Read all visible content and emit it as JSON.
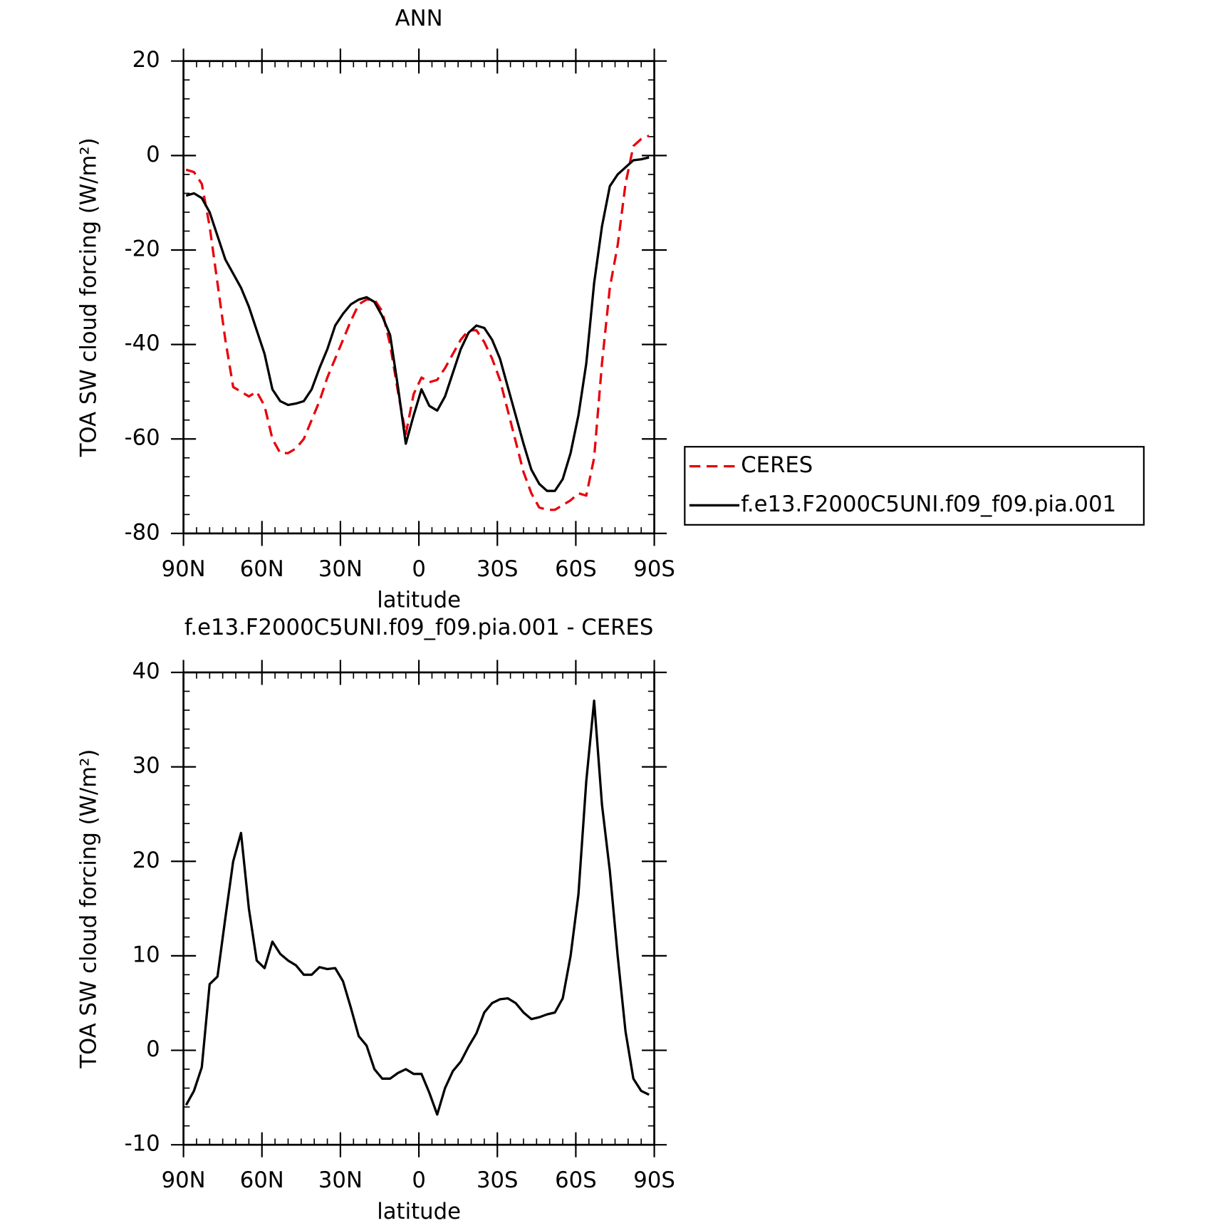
{
  "chart_data": [
    {
      "type": "line",
      "title": "ANN",
      "xlabel": "latitude",
      "ylabel": "TOA SW cloud forcing (W/m²)",
      "x": [
        89,
        86,
        83,
        80,
        77,
        74,
        71,
        68,
        65,
        62,
        59,
        56,
        53,
        50,
        47,
        44,
        41,
        38,
        35,
        32,
        29,
        26,
        23,
        20,
        17,
        14,
        11,
        8,
        5,
        2,
        -1,
        -4,
        -7,
        -10,
        -13,
        -16,
        -19,
        -22,
        -25,
        -28,
        -31,
        -34,
        -37,
        -40,
        -43,
        -46,
        -49,
        -52,
        -55,
        -58,
        -61,
        -64,
        -67,
        -70,
        -73,
        -76,
        -79,
        -82,
        -85,
        -88
      ],
      "series": [
        {
          "name": "CERES",
          "color": "#e8000b",
          "dashed": true,
          "values": [
            -3,
            -3.5,
            -6,
            -15,
            -27,
            -39,
            -49,
            -50,
            -51,
            -50,
            -53,
            -60,
            -63,
            -63,
            -62,
            -60,
            -56,
            -52,
            -47,
            -43,
            -39,
            -35,
            -31.5,
            -30.5,
            -30.5,
            -33,
            -40,
            -50,
            -59,
            -50.5,
            -47,
            -48,
            -47.5,
            -45,
            -42,
            -39,
            -37,
            -37,
            -39.5,
            -43,
            -47.5,
            -54,
            -60.5,
            -67,
            -71.5,
            -74.5,
            -75,
            -75,
            -74,
            -73,
            -71.5,
            -72,
            -64,
            -44,
            -28,
            -19,
            -6,
            2,
            3.5,
            4.2
          ]
        },
        {
          "name": "f.e13.F2000C5UNI.f09_f09.pia.001",
          "color": "#000000",
          "dashed": false,
          "values": [
            -8.5,
            -8,
            -9,
            -12,
            -17,
            -22,
            -25,
            -28,
            -32,
            -37,
            -42,
            -49.5,
            -52,
            -52.8,
            -52.5,
            -52,
            -49.5,
            -45,
            -41,
            -36,
            -33.5,
            -31.5,
            -30.5,
            -30,
            -31,
            -34,
            -38,
            -49,
            -61,
            -55,
            -49.5,
            -53,
            -54,
            -51,
            -46,
            -41,
            -37.5,
            -36,
            -36.5,
            -39,
            -43,
            -49,
            -55,
            -61,
            -66.5,
            -69.5,
            -71,
            -71,
            -68.5,
            -63,
            -55,
            -44,
            -27,
            -15,
            -6.5,
            -4,
            -2.5,
            -1,
            -0.8,
            -0.4
          ]
        }
      ],
      "xlim": [
        90,
        -90
      ],
      "xticks": [
        {
          "value": 90,
          "label": "90N"
        },
        {
          "value": 60,
          "label": "60N"
        },
        {
          "value": 30,
          "label": "30N"
        },
        0,
        {
          "value": -30,
          "label": "30S"
        },
        {
          "value": -60,
          "label": "60S"
        },
        {
          "value": -90,
          "label": "90S"
        }
      ],
      "ylim": [
        -80,
        20
      ],
      "yticks": [
        -80,
        -60,
        -40,
        -20,
        0,
        20
      ],
      "legend": "right"
    },
    {
      "type": "line",
      "title": "f.e13.F2000C5UNI.f09_f09.pia.001 - CERES",
      "xlabel": "latitude",
      "ylabel": "TOA SW cloud forcing (W/m²)",
      "x": [
        89,
        86,
        83,
        80,
        77,
        74,
        71,
        68,
        65,
        62,
        59,
        56,
        53,
        50,
        47,
        44,
        41,
        38,
        35,
        32,
        29,
        26,
        23,
        20,
        17,
        14,
        11,
        8,
        5,
        2,
        -1,
        -4,
        -7,
        -10,
        -13,
        -16,
        -19,
        -22,
        -25,
        -28,
        -31,
        -34,
        -37,
        -40,
        -43,
        -46,
        -49,
        -52,
        -55,
        -58,
        -61,
        -64,
        -67,
        -70,
        -73,
        -76,
        -79,
        -82,
        -85,
        -88
      ],
      "values": [
        -5.8,
        -4.3,
        -1.8,
        7,
        7.8,
        14,
        20,
        23,
        15,
        9.5,
        8.7,
        11.5,
        10.2,
        9.5,
        9,
        8,
        8,
        8.8,
        8.6,
        8.7,
        7.3,
        4.5,
        1.5,
        0.5,
        -2,
        -3,
        -3,
        -2.4,
        -2,
        -2.5,
        -2.5,
        -4.5,
        -6.8,
        -4,
        -2.2,
        -1.2,
        0.4,
        1.8,
        4,
        5,
        5.4,
        5.5,
        5,
        4,
        3.3,
        3.5,
        3.8,
        4,
        5.5,
        10,
        16.5,
        28.5,
        37,
        26,
        19,
        10,
        2,
        -3,
        -4.3,
        -4.7
      ],
      "color": "#000000",
      "xlim": [
        90,
        -90
      ],
      "xticks": [
        {
          "value": 90,
          "label": "90N"
        },
        {
          "value": 60,
          "label": "60N"
        },
        {
          "value": 30,
          "label": "30N"
        },
        0,
        {
          "value": -30,
          "label": "30S"
        },
        {
          "value": -60,
          "label": "60S"
        },
        {
          "value": -90,
          "label": "90S"
        }
      ],
      "ylim": [
        -10,
        40
      ],
      "yticks": [
        -10,
        0,
        10,
        20,
        30,
        40
      ]
    }
  ]
}
